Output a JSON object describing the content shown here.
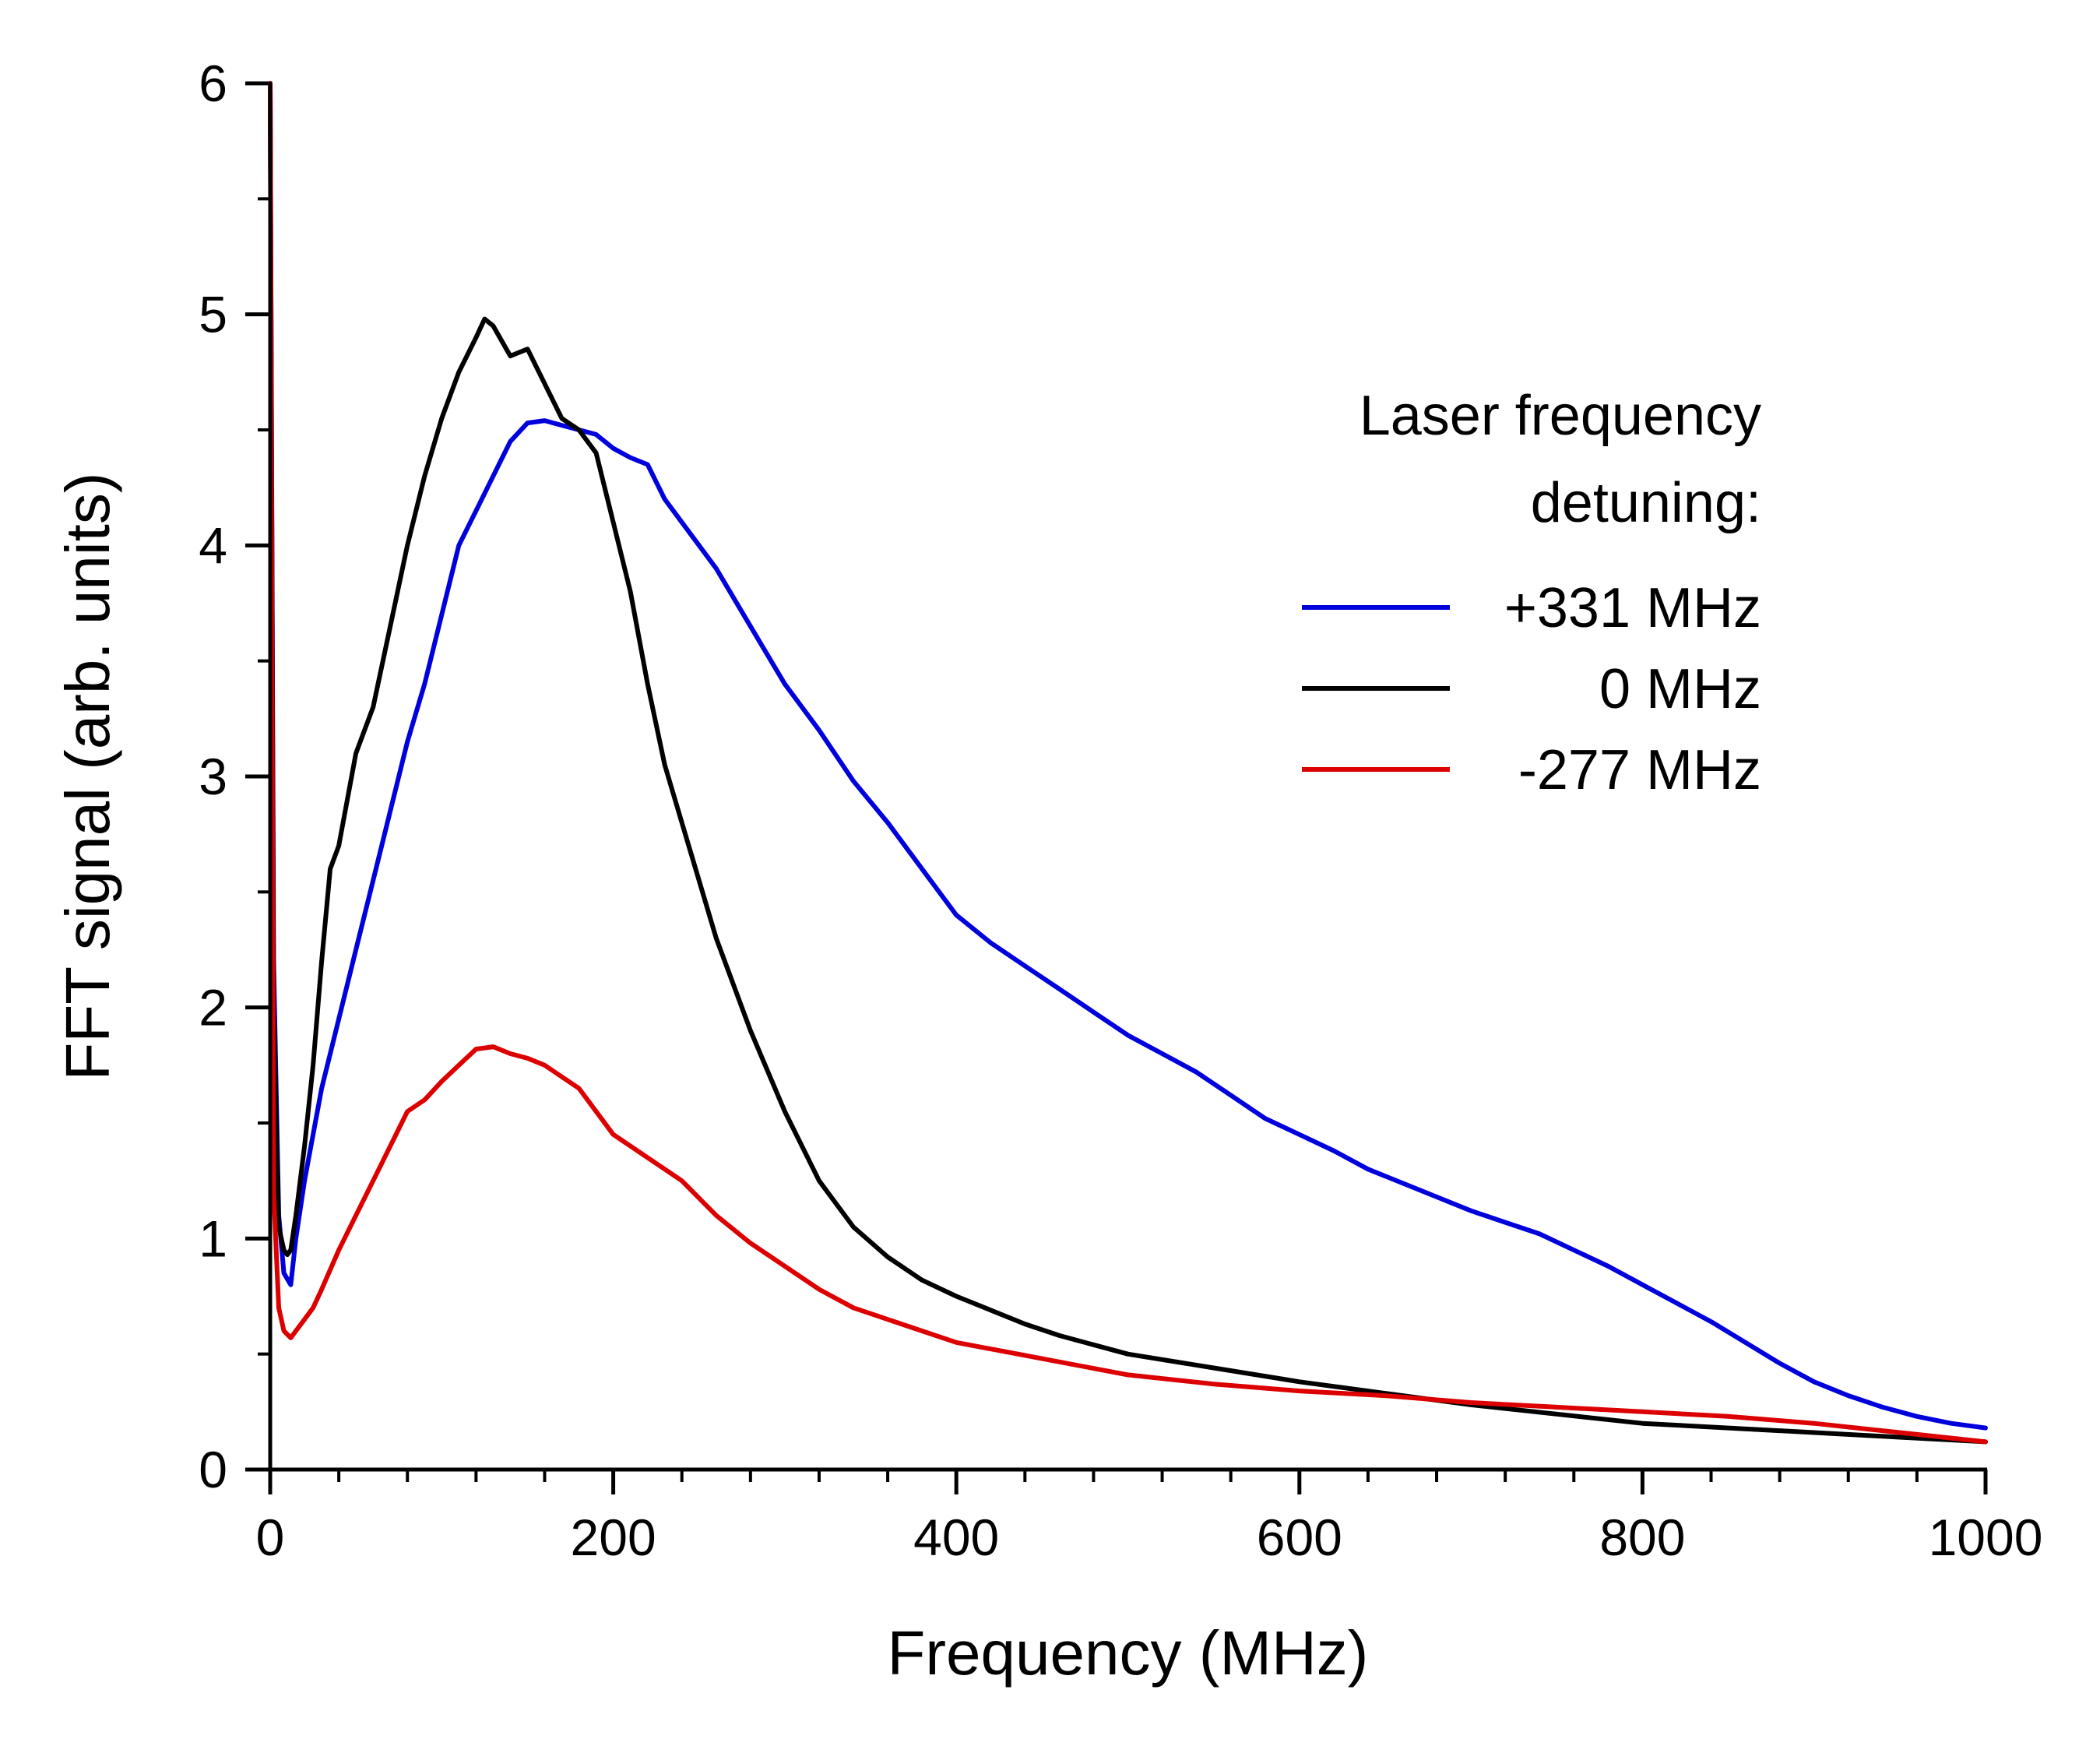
{
  "chart_data": {
    "type": "line",
    "title": "",
    "xlabel": "Frequency (MHz)",
    "ylabel": "FFT signal (arb. units)",
    "xlim": [
      0,
      1000
    ],
    "ylim": [
      0,
      6
    ],
    "xticks": [
      0,
      200,
      400,
      600,
      800,
      1000
    ],
    "yticks": [
      0,
      1,
      2,
      3,
      4,
      5,
      6
    ],
    "x_minor_step": 40,
    "y_minor_step": 0.5,
    "legend_title_lines": [
      "Laser frequency",
      "detuning:"
    ],
    "legend_position": "top-right",
    "series": [
      {
        "name": "+331 MHz",
        "color": "#0000dd",
        "x": [
          0,
          2,
          5,
          8,
          12,
          15,
          20,
          25,
          30,
          40,
          50,
          60,
          70,
          80,
          90,
          100,
          110,
          120,
          130,
          140,
          150,
          160,
          170,
          180,
          190,
          200,
          210,
          220,
          230,
          240,
          260,
          280,
          300,
          320,
          340,
          360,
          380,
          400,
          420,
          440,
          460,
          480,
          500,
          520,
          540,
          560,
          580,
          600,
          620,
          640,
          660,
          680,
          700,
          720,
          740,
          760,
          780,
          800,
          820,
          840,
          860,
          880,
          900,
          920,
          940,
          960,
          980,
          1000
        ],
        "y": [
          6.0,
          2.2,
          1.1,
          0.85,
          0.8,
          1.0,
          1.25,
          1.45,
          1.65,
          1.95,
          2.25,
          2.55,
          2.85,
          3.15,
          3.4,
          3.7,
          4.0,
          4.15,
          4.3,
          4.45,
          4.53,
          4.54,
          4.52,
          4.5,
          4.48,
          4.42,
          4.38,
          4.35,
          4.2,
          4.1,
          3.9,
          3.65,
          3.4,
          3.2,
          2.98,
          2.8,
          2.6,
          2.4,
          2.28,
          2.18,
          2.08,
          1.98,
          1.88,
          1.8,
          1.72,
          1.62,
          1.52,
          1.45,
          1.38,
          1.3,
          1.24,
          1.18,
          1.12,
          1.07,
          1.02,
          0.95,
          0.88,
          0.8,
          0.72,
          0.64,
          0.55,
          0.46,
          0.38,
          0.32,
          0.27,
          0.23,
          0.2,
          0.18
        ]
      },
      {
        "name": "0 MHz",
        "color": "#000000",
        "x": [
          0,
          2,
          5,
          8,
          10,
          12,
          15,
          20,
          25,
          30,
          35,
          40,
          50,
          60,
          70,
          80,
          90,
          100,
          110,
          120,
          125,
          130,
          140,
          150,
          160,
          170,
          180,
          190,
          200,
          210,
          220,
          230,
          240,
          260,
          280,
          300,
          320,
          340,
          360,
          380,
          400,
          420,
          440,
          460,
          480,
          500,
          550,
          600,
          650,
          700,
          750,
          800,
          850,
          900,
          950,
          1000
        ],
        "y": [
          6.0,
          2.0,
          1.05,
          0.95,
          0.93,
          0.95,
          1.1,
          1.4,
          1.75,
          2.2,
          2.6,
          2.7,
          3.1,
          3.3,
          3.65,
          4.0,
          4.3,
          4.55,
          4.75,
          4.9,
          4.98,
          4.95,
          4.82,
          4.85,
          4.7,
          4.55,
          4.5,
          4.4,
          4.1,
          3.8,
          3.4,
          3.05,
          2.8,
          2.3,
          1.9,
          1.55,
          1.25,
          1.05,
          0.92,
          0.82,
          0.75,
          0.69,
          0.63,
          0.58,
          0.54,
          0.5,
          0.44,
          0.38,
          0.33,
          0.28,
          0.24,
          0.2,
          0.18,
          0.16,
          0.14,
          0.12
        ]
      },
      {
        "name": "-277 MHz",
        "color": "#dd0000",
        "x": [
          0,
          2,
          5,
          8,
          12,
          15,
          20,
          25,
          30,
          40,
          50,
          60,
          70,
          80,
          90,
          100,
          110,
          120,
          130,
          140,
          150,
          160,
          170,
          180,
          190,
          200,
          220,
          240,
          260,
          280,
          300,
          320,
          340,
          360,
          380,
          400,
          450,
          500,
          550,
          600,
          650,
          700,
          750,
          800,
          850,
          900,
          950,
          1000
        ],
        "y": [
          6.0,
          1.2,
          0.7,
          0.6,
          0.57,
          0.6,
          0.65,
          0.7,
          0.78,
          0.95,
          1.1,
          1.25,
          1.4,
          1.55,
          1.6,
          1.68,
          1.75,
          1.82,
          1.83,
          1.8,
          1.78,
          1.75,
          1.7,
          1.65,
          1.55,
          1.45,
          1.35,
          1.25,
          1.1,
          0.98,
          0.88,
          0.78,
          0.7,
          0.65,
          0.6,
          0.55,
          0.48,
          0.41,
          0.37,
          0.34,
          0.32,
          0.29,
          0.27,
          0.25,
          0.23,
          0.2,
          0.16,
          0.12
        ]
      }
    ]
  }
}
